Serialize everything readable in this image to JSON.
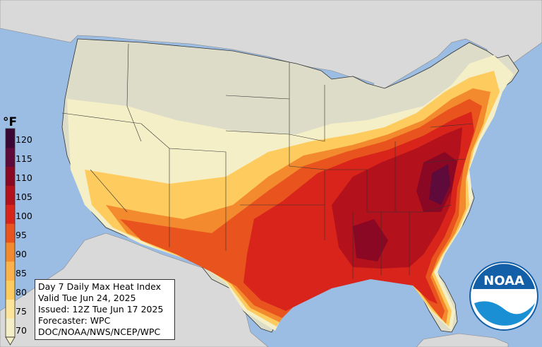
{
  "unit_label": "°F",
  "scale": {
    "ticks": [
      "120",
      "115",
      "110",
      "105",
      "100",
      "95",
      "90",
      "85",
      "80",
      "75",
      "70"
    ],
    "colors": [
      "#f5efc7",
      "#fde699",
      "#fdcb5e",
      "#fbb24a",
      "#f48a2e",
      "#e8531e",
      "#d8241a",
      "#b3111c",
      "#8a0824",
      "#5e0a3b",
      "#3a0636"
    ]
  },
  "info": {
    "title": "Day 7 Daily Max Heat Index",
    "valid": "Valid Tue Jun 24, 2025",
    "issued": "Issued: 12Z Tue Jun 17 2025",
    "forecaster": "Forecaster: WPC",
    "agency": "DOC/NOAA/NWS/NCEP/WPC"
  },
  "logo_text": "NOAA",
  "colors": {
    "ocean": "#9cbde3",
    "land_outside": "#d9d9d9",
    "no_data": "#dcdcc8",
    "noaa_blue": "#1460a8"
  }
}
